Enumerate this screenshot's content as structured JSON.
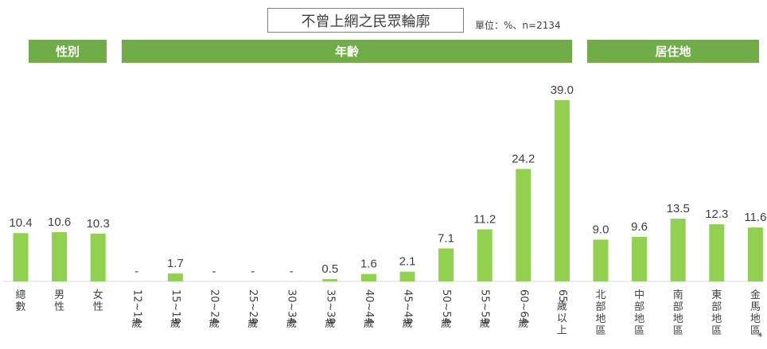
{
  "title": "不曾上網之民眾輪廓",
  "unit_note": "單位：%、n=2134",
  "colors": {
    "bar": "#92d050",
    "header_bg": "#70ad47",
    "text": "#404040",
    "axis": "#d9d9d9"
  },
  "chart_data": {
    "type": "bar",
    "title": "不曾上網之民眾輪廓",
    "groups": [
      {
        "label": "性別",
        "from": 1,
        "to": 2
      },
      {
        "label": "年齡",
        "from": 3,
        "to": 14
      },
      {
        "label": "居住地",
        "from": 15,
        "to": 19
      }
    ],
    "categories": [
      "總數",
      "男性",
      "女性",
      "12~14歲",
      "15~19歲",
      "20~24歲",
      "25~29歲",
      "30~34歲",
      "35~39歲",
      "40~44歲",
      "45~49歲",
      "50~54歲",
      "55~59歲",
      "60~64歲",
      "65歲以上",
      "北部地區",
      "中部地區",
      "南部地區",
      "東部地區",
      "金馬地區*"
    ],
    "values": [
      10.4,
      10.6,
      10.3,
      null,
      1.7,
      null,
      null,
      null,
      0.5,
      1.6,
      2.1,
      7.1,
      11.2,
      24.2,
      39.0,
      9.0,
      9.6,
      13.5,
      12.3,
      11.6
    ],
    "value_labels": [
      "10.4",
      "10.6",
      "10.3",
      "-",
      "1.7",
      "-",
      "-",
      "-",
      "0.5",
      "1.6",
      "2.1",
      "7.1",
      "11.2",
      "24.2",
      "39.0",
      "9.0",
      "9.6",
      "13.5",
      "12.3",
      "11.6"
    ],
    "ylim": [
      0,
      39.0
    ],
    "grid": false
  }
}
